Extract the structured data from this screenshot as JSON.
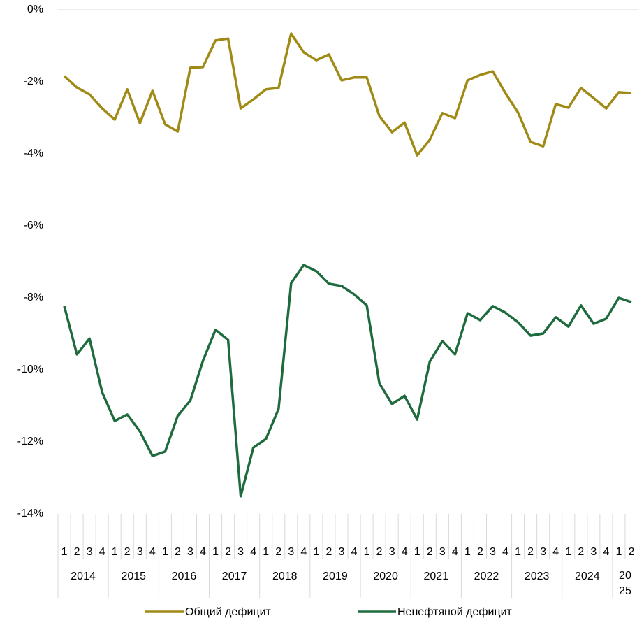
{
  "chart_data": {
    "type": "line",
    "categories": [
      "1",
      "2",
      "3",
      "4",
      "1",
      "2",
      "3",
      "4",
      "1",
      "2",
      "3",
      "4",
      "1",
      "2",
      "3",
      "4",
      "1",
      "2",
      "3",
      "4",
      "1",
      "2",
      "3",
      "4",
      "1",
      "2",
      "3",
      "4",
      "1",
      "2",
      "3",
      "4",
      "1",
      "2",
      "3",
      "4",
      "1",
      "2",
      "3",
      "4",
      "1",
      "2",
      "3",
      "4",
      "1",
      "2"
    ],
    "years": [
      "2014",
      "2015",
      "2016",
      "2017",
      "2018",
      "2019",
      "2020",
      "2021",
      "2022",
      "2023",
      "2024",
      "2025"
    ],
    "series": [
      {
        "name": "Общий дефицит",
        "color": "#a08a16",
        "values": [
          -1.84,
          -2.16,
          -2.35,
          -2.74,
          -3.05,
          -2.21,
          -3.15,
          -2.25,
          -3.18,
          -3.38,
          -1.61,
          -1.59,
          -0.85,
          -0.8,
          -2.74,
          -2.49,
          -2.21,
          -2.17,
          -0.66,
          -1.18,
          -1.4,
          -1.24,
          -1.96,
          -1.88,
          -1.88,
          -2.95,
          -3.4,
          -3.13,
          -4.04,
          -3.61,
          -2.87,
          -3.01,
          -1.96,
          -1.81,
          -1.71,
          -2.31,
          -2.85,
          -3.67,
          -3.79,
          -2.62,
          -2.72,
          -2.17,
          -2.45,
          -2.74,
          -2.29,
          -2.31
        ]
      },
      {
        "name": "Ненефтяной дефицит",
        "color": "#1e6b3e",
        "values": [
          -8.23,
          -9.57,
          -9.13,
          -10.62,
          -11.42,
          -11.24,
          -11.71,
          -12.39,
          -12.27,
          -11.28,
          -10.85,
          -9.75,
          -8.89,
          -9.17,
          -13.51,
          -12.16,
          -11.92,
          -11.09,
          -7.59,
          -7.09,
          -7.26,
          -7.61,
          -7.67,
          -7.9,
          -8.21,
          -10.37,
          -10.95,
          -10.72,
          -11.38,
          -9.77,
          -9.2,
          -9.57,
          -8.43,
          -8.62,
          -8.23,
          -8.41,
          -8.68,
          -9.05,
          -8.99,
          -8.54,
          -8.8,
          -8.21,
          -8.72,
          -8.58,
          -8.0,
          -8.12
        ]
      }
    ],
    "ylim": [
      -14,
      0
    ],
    "yticks": [
      {
        "value": 0,
        "label": "0%"
      },
      {
        "value": -2,
        "label": "-2%"
      },
      {
        "value": -4,
        "label": "-4%"
      },
      {
        "value": -6,
        "label": "-6%"
      },
      {
        "value": -8,
        "label": "-8%"
      },
      {
        "value": -10,
        "label": "-10%"
      },
      {
        "value": -12,
        "label": "-12%"
      },
      {
        "value": -14,
        "label": "-14%"
      }
    ],
    "legend": "bottom"
  }
}
